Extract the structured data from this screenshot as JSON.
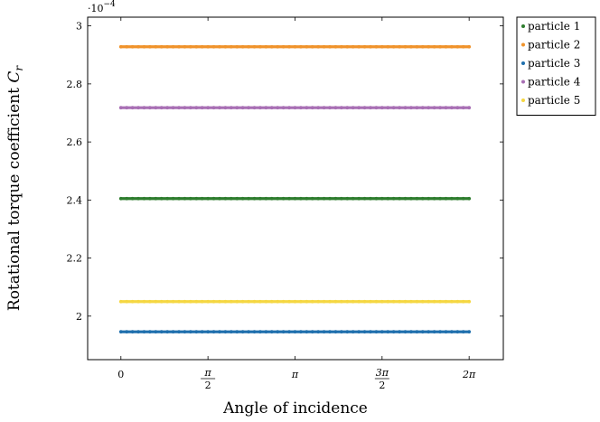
{
  "chart_data": {
    "type": "scatter",
    "xlabel": "Angle of incidence",
    "ylabel": "Rotational torque coefficient",
    "ylabel_symbol": "C",
    "ylabel_subscript": "r",
    "y_scale_base": "·10",
    "y_scale_exponent": "−4",
    "xlim": [
      -0.6,
      6.9
    ],
    "ylim": [
      1.85,
      3.03
    ],
    "x_ticks": [
      {
        "value": 0,
        "label": "0"
      },
      {
        "value": 1.5708,
        "label": "π/2"
      },
      {
        "value": 3.1416,
        "label": "π"
      },
      {
        "value": 4.7124,
        "label": "3π/2"
      },
      {
        "value": 6.2832,
        "label": "2π"
      }
    ],
    "y_ticks": [
      {
        "value": 2.0,
        "label": "2"
      },
      {
        "value": 2.2,
        "label": "2.2"
      },
      {
        "value": 2.4,
        "label": "2.4"
      },
      {
        "value": 2.6,
        "label": "2.6"
      },
      {
        "value": 2.8,
        "label": "2.8"
      },
      {
        "value": 3.0,
        "label": "3"
      }
    ],
    "x_range": [
      0,
      6.2832
    ],
    "legend_position": "outside-right-top",
    "series": [
      {
        "name": "particle 1",
        "color": "#2e7d2e",
        "value": 2.405
      },
      {
        "name": "particle 2",
        "color": "#f0932b",
        "value": 2.928
      },
      {
        "name": "particle 3",
        "color": "#1f6fad",
        "value": 1.946
      },
      {
        "name": "particle 4",
        "color": "#a86fb4",
        "value": 2.718
      },
      {
        "name": "particle 5",
        "color": "#f5d742",
        "value": 2.05
      }
    ]
  }
}
